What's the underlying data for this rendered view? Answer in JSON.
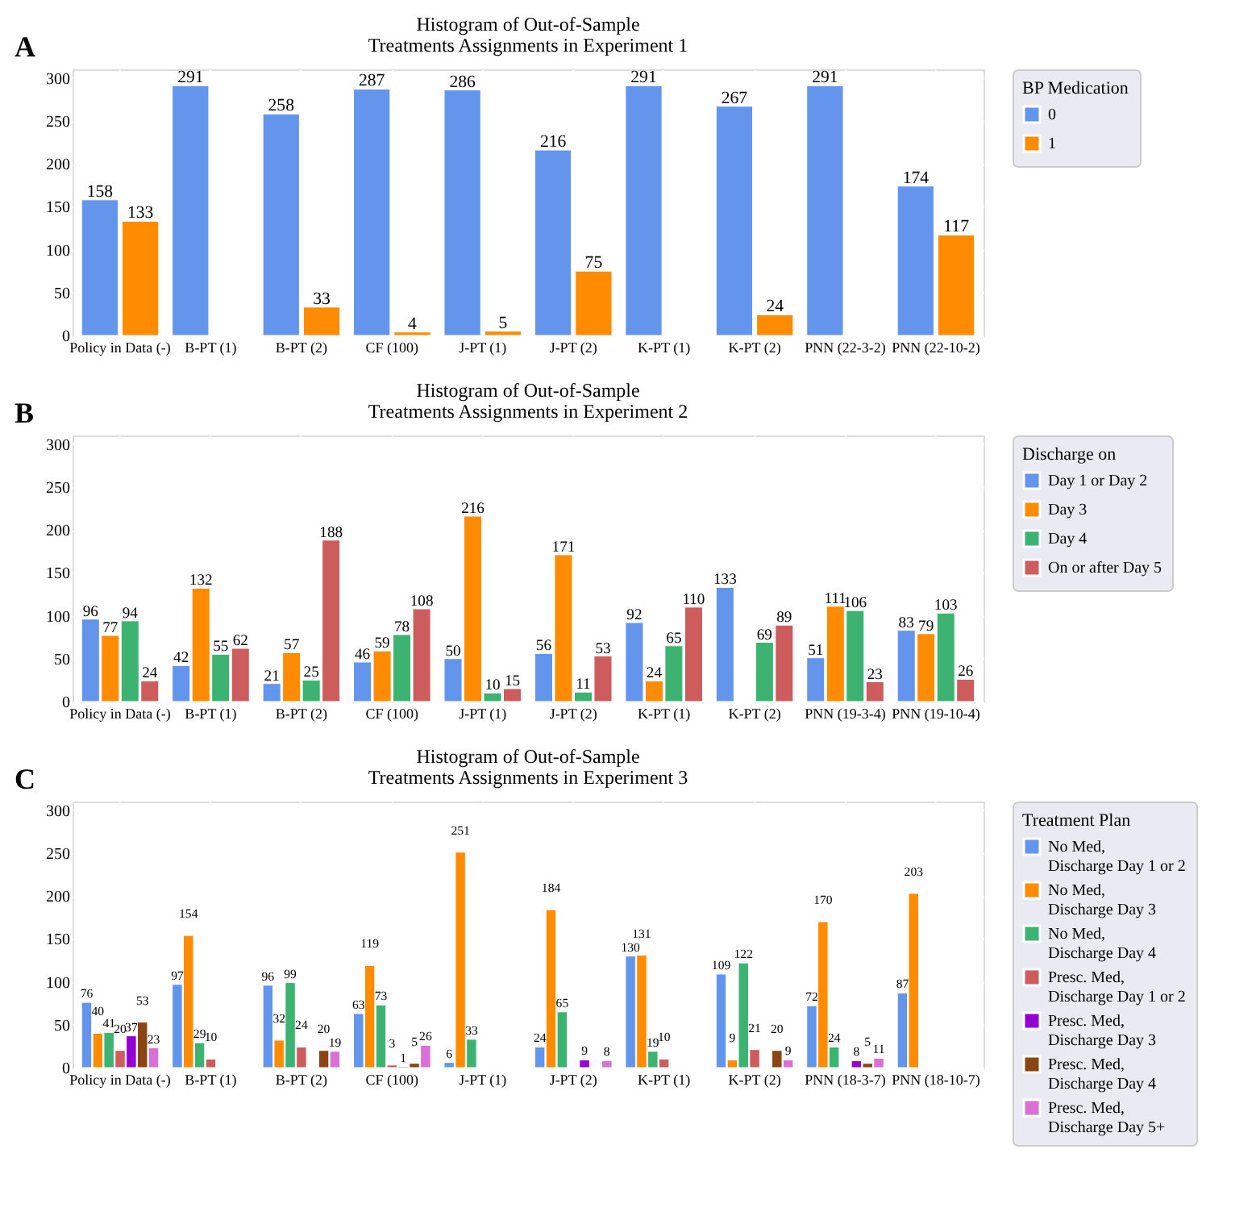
{
  "chart_data": [
    {
      "type": "bar",
      "title": "Histogram of Out-of-Sample",
      "subtitle": "Treatments Assignments in Experiment 1",
      "annotations": [
        "A"
      ],
      "legend_title": "BP Medication",
      "legend": "right",
      "grid": true,
      "data_labels": true,
      "ylim": [
        0,
        310
      ],
      "yticks": [
        0,
        50,
        100,
        150,
        200,
        250,
        300
      ],
      "categories": [
        "Policy in Data (-)",
        "B-PT (1)",
        "B-PT (2)",
        "CF (100)",
        "J-PT (1)",
        "J-PT (2)",
        "K-PT (1)",
        "K-PT (2)",
        "PNN (22-3-2)",
        "PNN (22-10-2)"
      ],
      "series": [
        {
          "name": "0",
          "color": "#6495ed",
          "values": [
            158,
            291,
            258,
            287,
            286,
            216,
            291,
            267,
            291,
            174
          ]
        },
        {
          "name": "1",
          "color": "#ff8c00",
          "values": [
            133,
            null,
            33,
            4,
            5,
            75,
            null,
            24,
            null,
            117
          ]
        }
      ]
    },
    {
      "type": "bar",
      "title": "Histogram of Out-of-Sample",
      "subtitle": "Treatments Assignments in Experiment 2",
      "annotations": [
        "B"
      ],
      "legend_title": "Discharge on",
      "legend": "right",
      "grid": true,
      "data_labels": true,
      "ylim": [
        0,
        310
      ],
      "yticks": [
        0,
        50,
        100,
        150,
        200,
        250,
        300
      ],
      "categories": [
        "Policy in Data (-)",
        "B-PT (1)",
        "B-PT (2)",
        "CF (100)",
        "J-PT (1)",
        "J-PT (2)",
        "K-PT (1)",
        "K-PT (2)",
        "PNN (19-3-4)",
        "PNN (19-10-4)"
      ],
      "series": [
        {
          "name": "Day 1 or Day 2",
          "color": "#6495ed",
          "values": [
            96,
            42,
            21,
            46,
            50,
            56,
            92,
            133,
            51,
            83
          ]
        },
        {
          "name": "Day 3",
          "color": "#ff8c00",
          "values": [
            77,
            132,
            57,
            59,
            216,
            171,
            24,
            null,
            111,
            79
          ]
        },
        {
          "name": "Day 4",
          "color": "#3cb371",
          "values": [
            94,
            55,
            25,
            78,
            10,
            11,
            65,
            69,
            106,
            103
          ]
        },
        {
          "name": "On or after Day 5",
          "color": "#cd5c5c",
          "values": [
            24,
            62,
            188,
            108,
            15,
            53,
            110,
            89,
            23,
            26
          ]
        }
      ]
    },
    {
      "type": "bar",
      "title": "Histogram of Out-of-Sample",
      "subtitle": "Treatments Assignments in Experiment 3",
      "annotations": [
        "C"
      ],
      "legend_title": "Treatment Plan",
      "legend": "right",
      "grid": true,
      "data_labels": true,
      "ylim": [
        0,
        310
      ],
      "yticks": [
        0,
        50,
        100,
        150,
        200,
        250,
        300
      ],
      "categories": [
        "Policy in Data (-)",
        "B-PT (1)",
        "B-PT (2)",
        "CF (100)",
        "J-PT (1)",
        "J-PT (2)",
        "K-PT (1)",
        "K-PT (2)",
        "PNN (18-3-7)",
        "PNN (18-10-7)"
      ],
      "series": [
        {
          "name": "No Med, Discharge Day 1 or 2",
          "color": "#6495ed",
          "values": [
            76,
            97,
            96,
            63,
            6,
            24,
            130,
            109,
            72,
            87
          ]
        },
        {
          "name": "No Med, Discharge Day 3",
          "color": "#ff8c00",
          "values": [
            40,
            154,
            32,
            119,
            251,
            184,
            131,
            9,
            170,
            203
          ]
        },
        {
          "name": "No Med, Discharge Day 4",
          "color": "#3cb371",
          "values": [
            41,
            29,
            99,
            73,
            33,
            65,
            19,
            122,
            24,
            null
          ]
        },
        {
          "name": "Presc. Med, Discharge Day 1 or 2",
          "color": "#cd5c5c",
          "values": [
            20,
            10,
            24,
            3,
            null,
            null,
            10,
            21,
            null,
            null
          ]
        },
        {
          "name": "Presc. Med, Discharge Day 3",
          "color": "#9400d3",
          "values": [
            37,
            null,
            null,
            1,
            null,
            9,
            null,
            null,
            8,
            null
          ]
        },
        {
          "name": "Presc. Med, Discharge Day 4",
          "color": "#8b4513",
          "values": [
            53,
            null,
            20,
            5,
            null,
            null,
            null,
            20,
            5,
            null
          ]
        },
        {
          "name": "Presc. Med, Discharge Day 5+",
          "color": "#da70d6",
          "values": [
            23,
            null,
            19,
            26,
            null,
            8,
            null,
            9,
            11,
            null
          ]
        }
      ]
    }
  ]
}
